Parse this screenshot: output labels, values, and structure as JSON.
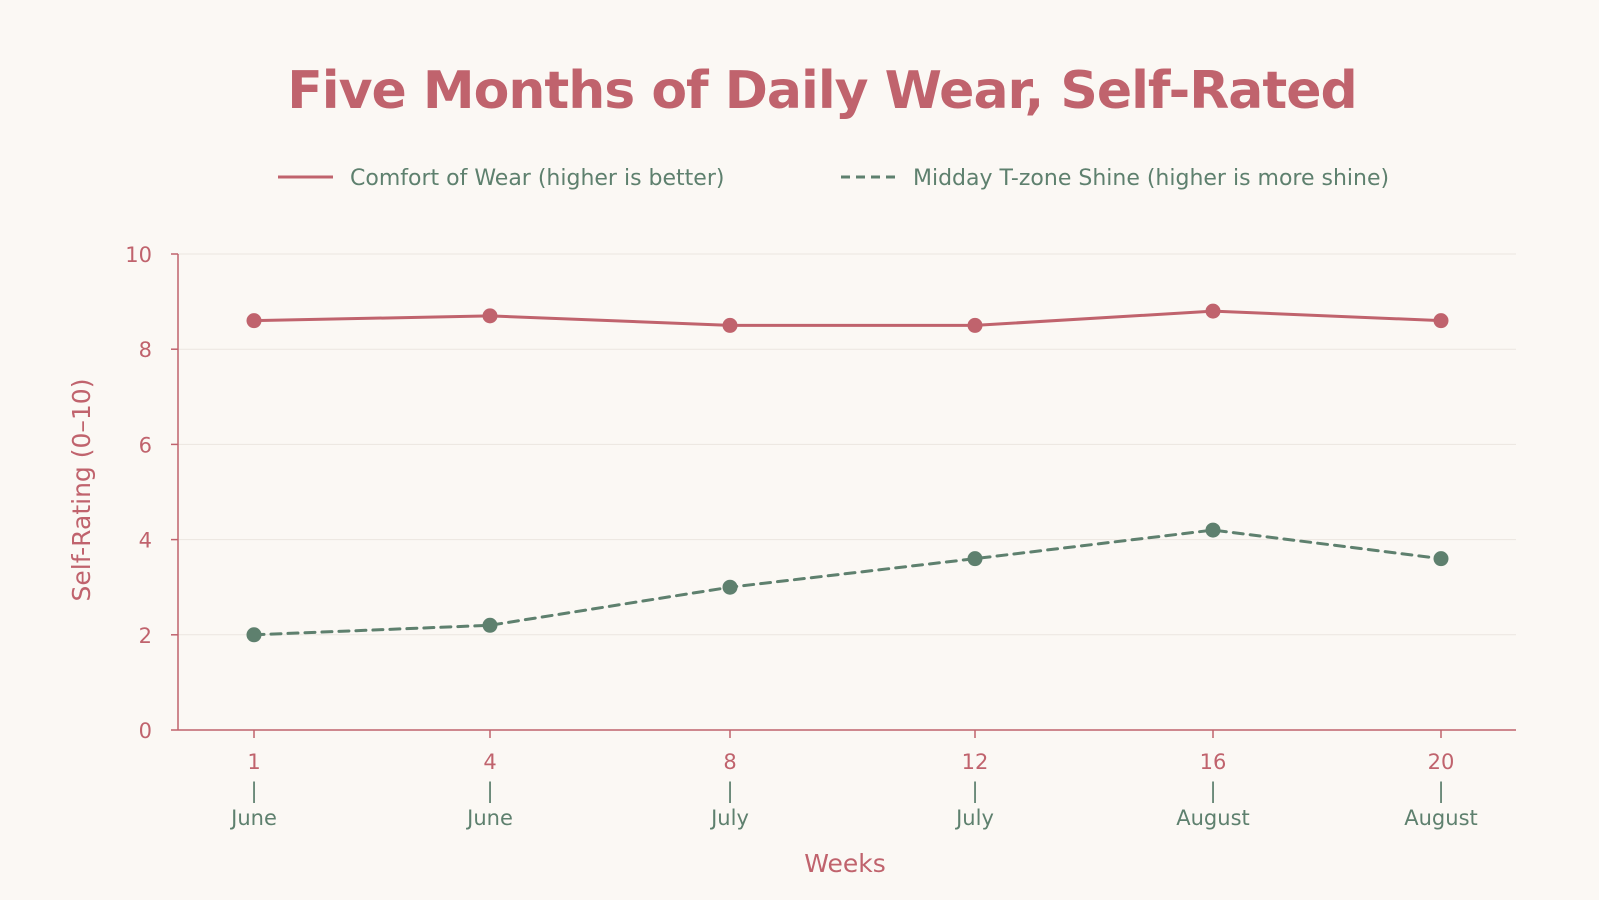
{
  "colors": {
    "background": "#fbf8f4",
    "accent": "#c0636d",
    "secondary": "#5e806e",
    "grid": "#ebe6e0"
  },
  "chart_data": {
    "type": "line",
    "title": "Five Months of Daily Wear, Self-Rated",
    "xlabel": "Weeks",
    "ylabel": "Self-Rating (0–10)",
    "ylim": [
      0,
      10
    ],
    "yticks": [
      0,
      2,
      4,
      6,
      8,
      10
    ],
    "grid": "horizontal",
    "legend_position": "top",
    "categories": [
      {
        "week": "1",
        "separator": "|",
        "month": "June"
      },
      {
        "week": "4",
        "separator": "|",
        "month": "June"
      },
      {
        "week": "8",
        "separator": "|",
        "month": "July"
      },
      {
        "week": "12",
        "separator": "|",
        "month": "July"
      },
      {
        "week": "16",
        "separator": "|",
        "month": "August"
      },
      {
        "week": "20",
        "separator": "|",
        "month": "August"
      }
    ],
    "series": [
      {
        "name": "Comfort of Wear (higher is better)",
        "color": "#c0636d",
        "line_style": "solid",
        "values": [
          8.6,
          8.7,
          8.5,
          8.5,
          8.8,
          8.6
        ]
      },
      {
        "name": "Midday T-zone Shine (higher is more shine)",
        "color": "#5e806e",
        "line_style": "dashed",
        "values": [
          2.0,
          2.2,
          3.0,
          3.6,
          4.2,
          3.6
        ]
      }
    ]
  }
}
